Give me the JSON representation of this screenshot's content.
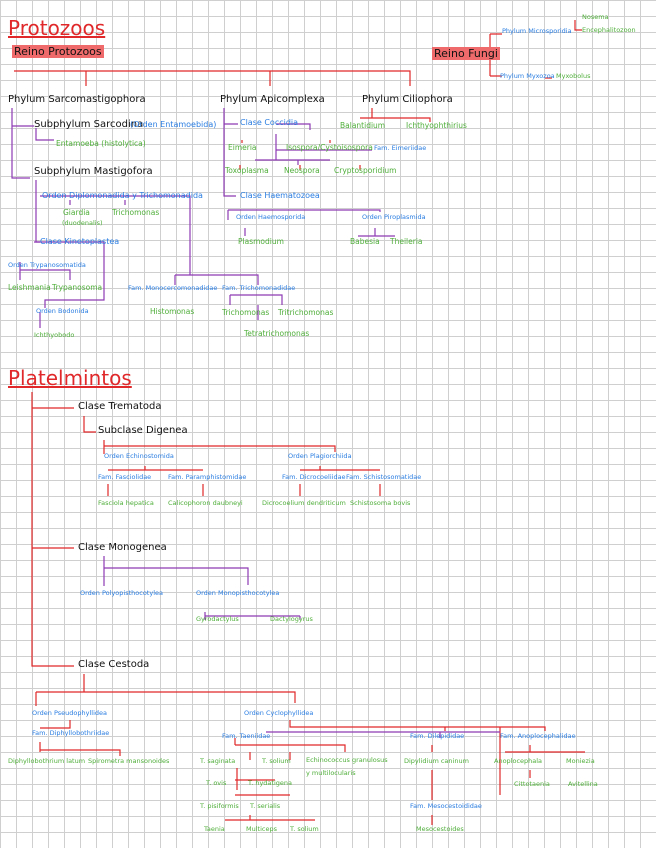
{
  "protozoa": {
    "title": "Protozoos",
    "kingdom": "Reino Protozoos",
    "sarco": {
      "phylum": "Phylum Sarcomastigophora",
      "subphylum_sarcodina": "Subphylum Sarcodina",
      "orden_entamoebida": "(Orden Entamoebida)",
      "entamoeba": "Entamoeba (histolytica)",
      "subphylum_masti": "Subphylum Mastigofora",
      "orden_diplo": "Orden Diplomonadida y Trichomonadida",
      "giardia": "Giardia",
      "giardia_sub": "(duodenalis)",
      "trichomonas": "Trichomonas",
      "clase_kineto": "Clase Kinetoplastea",
      "orden_trypano": "Orden Trypanosomatida",
      "leishmania": "Leishmania",
      "trypanosoma": "Trypanosoma",
      "orden_bodonida": "Orden Bodonida",
      "ichthyobodo": "Ichthyobodo",
      "fam_monocerco": "Fam. Monocercomonadidae",
      "histomonas": "Histomonas",
      "fam_tricho": "Fam. Trichomonadidae",
      "trichomonas2": "Trichomonas",
      "tritrichomonas": "Tritrichomonas",
      "tetratrichomonas": "Tetratrichomonas"
    },
    "apico": {
      "phylum": "Phylum Apicomplexa",
      "clase_coccidia": "Clase Coccidia",
      "eimeria": "Eimeria",
      "isospora": "Isospora/Cystoisospora",
      "fam": "Fam. Eimeriidae",
      "toxoplasma": "Toxoplasma",
      "neospora": "Neospora",
      "cryptosporidium": "Cryptosporidium",
      "clase_haemato": "Clase Haematozoea",
      "orden_haemo": "Orden Haemosporida",
      "plasmodium": "Plasmodium",
      "orden_piro": "Orden Piroplasmida",
      "babesia": "Babesia",
      "theileria": "Theileria"
    },
    "cilio": {
      "phylum": "Phylum Ciliophora",
      "balantidium": "Balantidium",
      "ichthyo": "Ichthyophthirius"
    },
    "fungi": {
      "kingdom": "Reino Fungi",
      "micros": "Phylum Microsporidia",
      "nosema": "Nosema",
      "encephalito": "Encephalitozoon",
      "myxozoa": "Phylum Myxozoa",
      "myxobolus": "Myxobolus"
    }
  },
  "platelmintos": {
    "title": "Platelmintos",
    "trematoda": {
      "clase": "Clase Trematoda",
      "subclase": "Subclase Digenea",
      "orden_echino": "Orden Echinostomida",
      "fam_fasciolidae": "Fam. Fasciolidae",
      "fasciola": "Fasciola hepatica",
      "fam_parampho": "Fam. Paramphistomidae",
      "calicophoron": "Calicophoron daubneyi",
      "orden_plagior": "Orden Plagiorchiida",
      "fam_dicro": "Fam. Dicrocoeliidae",
      "dicrocoelium": "Dicrocoelium dendriticum",
      "fam_schisto": "Fam. Schistosomatidae",
      "schistosoma": "Schistosoma bovis"
    },
    "monogenea": {
      "clase": "Clase Monogenea",
      "orden_poly": "Orden Polyopisthocotylea",
      "orden_mono": "Orden Monopisthocotylea",
      "gyrodactylus": "Gyrodactylus",
      "dactylogyrus": "Dactylogyrus"
    },
    "cestoda": {
      "clase": "Clase Cestoda",
      "orden_pseudo": "Orden Pseudophyllidea",
      "fam_diphyllo": "Fam. Diphyllobothriidae",
      "diphyllo": "Diphyllobothrium latum",
      "spirometra": "Spirometra mansonoides",
      "orden_cyclo": "Orden Cyclophyllidea",
      "fam_taeniidae": "Fam. Taeniidae",
      "t_saginata": "T. saginata",
      "t_solium": "T. solium",
      "echino": "Echinococcus granulosus",
      "echino2": "y multilocularis",
      "t_ovis": "T. ovis",
      "t_hydatigena": "T. hydatigena",
      "t_pisiformis": "T. pisiformis",
      "t_serialis": "T. serialis",
      "taenia": "Taenia",
      "multiceps": "Multiceps",
      "tsolium2": "T. solium",
      "fam_dilep": "Fam. Dilepididae",
      "dipylidium": "Dipylidium caninum",
      "fam_meso": "Fam. Mesocestoididae",
      "mesocestoides": "Mesocestoides",
      "fam_anoplo": "Fam. Anoplocephalidae",
      "anoplocephala": "Anoplocephala",
      "moniezia": "Moniezia",
      "cittotaenia": "Cittotaenia",
      "avitellina": "Avitellina"
    }
  }
}
